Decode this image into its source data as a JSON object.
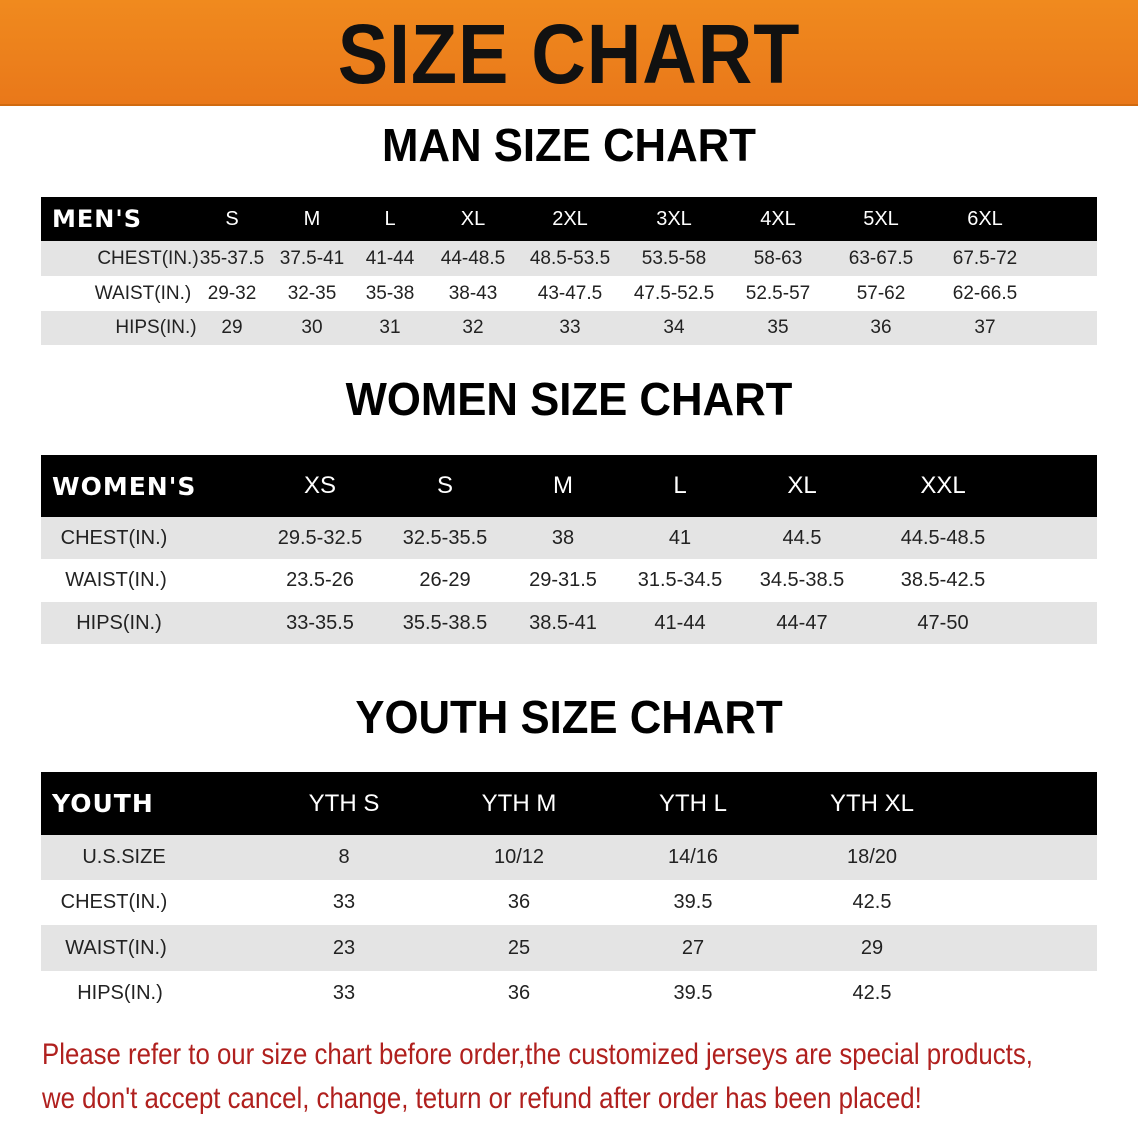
{
  "banner_title": "SIZE CHART",
  "chart_data": [
    {
      "type": "table",
      "title": "MAN SIZE CHART",
      "columns": [
        "MEN'S",
        "S",
        "M",
        "L",
        "XL",
        "2XL",
        "3XL",
        "4XL",
        "5XL",
        "6XL"
      ],
      "rows": [
        [
          "CHEST(IN.)",
          "35-37.5",
          "37.5-41",
          "41-44",
          "44-48.5",
          "48.5-53.5",
          "53.5-58",
          "58-63",
          "63-67.5",
          "67.5-72"
        ],
        [
          "WAIST(IN.)",
          "29-32",
          "32-35",
          "35-38",
          "38-43",
          "43-47.5",
          "47.5-52.5",
          "52.5-57",
          "57-62",
          "62-66.5"
        ],
        [
          "HIPS(IN.)",
          "29",
          "30",
          "31",
          "32",
          "33",
          "34",
          "35",
          "36",
          "37"
        ]
      ]
    },
    {
      "type": "table",
      "title": "WOMEN SIZE CHART",
      "columns": [
        "WOMEN'S",
        "XS",
        "S",
        "M",
        "L",
        "XL",
        "XXL"
      ],
      "rows": [
        [
          "CHEST(IN.)",
          "29.5-32.5",
          "32.5-35.5",
          "38",
          "41",
          "44.5",
          "44.5-48.5"
        ],
        [
          "WAIST(IN.)",
          "23.5-26",
          "26-29",
          "29-31.5",
          "31.5-34.5",
          "34.5-38.5",
          "38.5-42.5"
        ],
        [
          "HIPS(IN.)",
          "33-35.5",
          "35.5-38.5",
          "38.5-41",
          "41-44",
          "44-47",
          "47-50"
        ]
      ]
    },
    {
      "type": "table",
      "title": "YOUTH SIZE CHART",
      "columns": [
        "YOUTH",
        "YTH S",
        "YTH M",
        "YTH L",
        "YTH XL"
      ],
      "rows": [
        [
          "U.S.SIZE",
          "8",
          "10/12",
          "14/16",
          "18/20"
        ],
        [
          "CHEST(IN.)",
          "33",
          "36",
          "39.5",
          "42.5"
        ],
        [
          "WAIST(IN.)",
          "23",
          "25",
          "27",
          "29"
        ],
        [
          "HIPS(IN.)",
          "33",
          "36",
          "39.5",
          "42.5"
        ]
      ]
    }
  ],
  "notice": [
    "Please refer to our size chart before order,the customized jerseys are special products,",
    "we don't accept cancel, change, teturn or refund after order has been placed!"
  ],
  "colors": {
    "banner": "#ee821c",
    "header": "#000000",
    "stripe": "#e4e4e4",
    "notice": "#b0201e"
  }
}
